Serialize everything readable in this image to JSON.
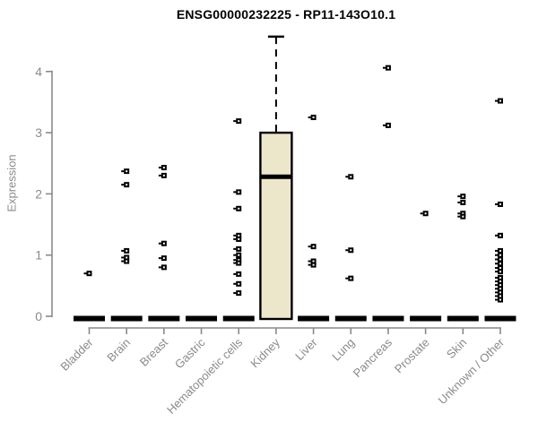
{
  "chart_data": {
    "type": "boxplot",
    "title": "ENSG00000232225 - RP11-143O10.1",
    "ylabel": "Expression",
    "xlabel": "",
    "yticks": [
      0,
      1,
      2,
      3,
      4
    ],
    "ylim": [
      0,
      4.6
    ],
    "grid": false,
    "legend": "none",
    "colors": {
      "box_fill": "#ECE6CB",
      "box_border": "#000000",
      "median_color": "#000000",
      "axis_color": "#8a8a8a",
      "tick_label_color": "#8a8a8a",
      "title_color": "#000000",
      "outlier_color": "#000000"
    },
    "categories": [
      "Bladder",
      "Brain",
      "Breast",
      "Gastric",
      "Hematopoietic cells",
      "Kidney",
      "Liver",
      "Lung",
      "Pancreas",
      "Prostate",
      "Skin",
      "Unknown / Other"
    ],
    "boxes": [
      {
        "category": "Bladder",
        "q1": 0,
        "median": 0,
        "q3": 0,
        "whisker_low": 0,
        "whisker_high": 0,
        "outliers": [
          0.7
        ]
      },
      {
        "category": "Brain",
        "q1": 0,
        "median": 0,
        "q3": 0,
        "whisker_low": 0,
        "whisker_high": 0,
        "outliers": [
          2.37,
          2.15,
          1.07,
          0.96,
          0.9
        ]
      },
      {
        "category": "Breast",
        "q1": 0,
        "median": 0,
        "q3": 0,
        "whisker_low": 0,
        "whisker_high": 0,
        "outliers": [
          2.43,
          2.3,
          1.19,
          0.95,
          0.8
        ]
      },
      {
        "category": "Gastric",
        "q1": 0,
        "median": 0,
        "q3": 0,
        "whisker_low": 0,
        "whisker_high": 0,
        "outliers": []
      },
      {
        "category": "Hematopoietic cells",
        "q1": 0,
        "median": 0,
        "q3": 0,
        "whisker_low": 0,
        "whisker_high": 0,
        "outliers": [
          3.19,
          2.03,
          1.76,
          1.32,
          1.26,
          1.1,
          1.0,
          0.92,
          0.87,
          0.69,
          0.53,
          0.38
        ]
      },
      {
        "category": "Kidney",
        "q1": 0,
        "median": 2.28,
        "q3": 3.0,
        "whisker_low": 0,
        "whisker_high": 4.57,
        "outliers": []
      },
      {
        "category": "Liver",
        "q1": 0,
        "median": 0,
        "q3": 0,
        "whisker_low": 0,
        "whisker_high": 0,
        "outliers": [
          3.25,
          1.14,
          0.9,
          0.84
        ]
      },
      {
        "category": "Lung",
        "q1": 0,
        "median": 0,
        "q3": 0,
        "whisker_low": 0,
        "whisker_high": 0,
        "outliers": [
          2.28,
          1.08,
          0.62
        ]
      },
      {
        "category": "Pancreas",
        "q1": 0,
        "median": 0,
        "q3": 0,
        "whisker_low": 0,
        "whisker_high": 0,
        "outliers": [
          4.06,
          3.12
        ]
      },
      {
        "category": "Prostate",
        "q1": 0,
        "median": 0,
        "q3": 0,
        "whisker_low": 0,
        "whisker_high": 0,
        "outliers": [
          1.68
        ]
      },
      {
        "category": "Skin",
        "q1": 0,
        "median": 0,
        "q3": 0,
        "whisker_low": 0,
        "whisker_high": 0,
        "outliers": [
          1.96,
          1.86,
          1.68,
          1.63
        ]
      },
      {
        "category": "Unknown / Other",
        "q1": 0,
        "median": 0,
        "q3": 0,
        "whisker_low": 0,
        "whisker_high": 0,
        "outliers": [
          3.52,
          1.83,
          1.32,
          1.07,
          1.0,
          0.93,
          0.86,
          0.79,
          0.73,
          0.63,
          0.57,
          0.51,
          0.45,
          0.39,
          0.33,
          0.27
        ]
      }
    ]
  }
}
